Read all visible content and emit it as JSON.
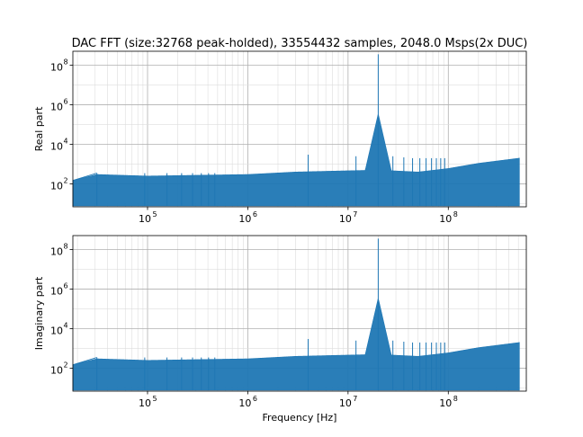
{
  "figure": {
    "title": "DAC FFT (size:32768 peak-holded), 33554432 samples, 2048.0 Msps(2x DUC)",
    "line_color": "#1f77b4"
  },
  "chart_data": [
    {
      "type": "line",
      "title": "DAC FFT (size:32768 peak-holded), 33554432 samples, 2048.0 Msps(2x DUC)",
      "ylabel": "Real part",
      "xlabel": "",
      "x_scale": "log",
      "y_scale": "log",
      "xlim": [
        18000,
        600000000
      ],
      "ylim": [
        7,
        500000000
      ],
      "grid": true,
      "x_ticks": [
        {
          "base": "10",
          "exp": "5",
          "value": 100000
        },
        {
          "base": "10",
          "exp": "6",
          "value": 1000000
        },
        {
          "base": "10",
          "exp": "7",
          "value": 10000000
        },
        {
          "base": "10",
          "exp": "8",
          "value": 100000000
        }
      ],
      "y_ticks": [
        {
          "base": "10",
          "exp": "2",
          "value": 100
        },
        {
          "base": "10",
          "exp": "4",
          "value": 10000
        },
        {
          "base": "10",
          "exp": "6",
          "value": 1000000
        },
        {
          "base": "10",
          "exp": "8",
          "value": 100000000
        }
      ],
      "series": [
        {
          "noise_floor_start_hz": 18000,
          "noise_floor_end_hz": 512000000,
          "noise_floor": [
            [
              18000,
              150
            ],
            [
              31250,
              300
            ],
            [
              100000,
              250
            ],
            [
              1000000,
              300
            ],
            [
              3000000,
              400
            ],
            [
              8000000,
              450
            ],
            [
              20000000,
              500
            ],
            [
              50000000,
              400
            ],
            [
              100000000,
              600
            ],
            [
              200000000,
              1100
            ],
            [
              512000000,
              2000
            ]
          ],
          "spurs": [
            {
              "x": 31250,
              "y": 350
            },
            {
              "x": 93750,
              "y": 350
            },
            {
              "x": 156250,
              "y": 350
            },
            {
              "x": 218750,
              "y": 350
            },
            {
              "x": 281250,
              "y": 350
            },
            {
              "x": 343750,
              "y": 350
            },
            {
              "x": 406250,
              "y": 350
            },
            {
              "x": 468750,
              "y": 350
            },
            {
              "x": 4000000,
              "y": 3000
            },
            {
              "x": 12000000,
              "y": 2500
            },
            {
              "x": 20000000,
              "y": 350000000
            },
            {
              "x": 28000000,
              "y": 2500
            },
            {
              "x": 36000000,
              "y": 2200
            },
            {
              "x": 44000000,
              "y": 2000
            },
            {
              "x": 52000000,
              "y": 2000
            },
            {
              "x": 60000000,
              "y": 2000
            },
            {
              "x": 68000000,
              "y": 2000
            },
            {
              "x": 76000000,
              "y": 2000
            },
            {
              "x": 84000000,
              "y": 2000
            },
            {
              "x": 92000000,
              "y": 2000
            }
          ]
        }
      ]
    },
    {
      "type": "line",
      "title": "",
      "ylabel": "Imaginary part",
      "xlabel": "Frequency [Hz]",
      "x_scale": "log",
      "y_scale": "log",
      "xlim": [
        18000,
        600000000
      ],
      "ylim": [
        7,
        500000000
      ],
      "grid": true,
      "x_ticks": [
        {
          "base": "10",
          "exp": "5",
          "value": 100000
        },
        {
          "base": "10",
          "exp": "6",
          "value": 1000000
        },
        {
          "base": "10",
          "exp": "7",
          "value": 10000000
        },
        {
          "base": "10",
          "exp": "8",
          "value": 100000000
        }
      ],
      "y_ticks": [
        {
          "base": "10",
          "exp": "2",
          "value": 100
        },
        {
          "base": "10",
          "exp": "4",
          "value": 10000
        },
        {
          "base": "10",
          "exp": "6",
          "value": 1000000
        },
        {
          "base": "10",
          "exp": "8",
          "value": 100000000
        }
      ],
      "series": [
        {
          "noise_floor_start_hz": 18000,
          "noise_floor_end_hz": 512000000,
          "noise_floor": [
            [
              18000,
              150
            ],
            [
              31250,
              300
            ],
            [
              100000,
              250
            ],
            [
              1000000,
              300
            ],
            [
              3000000,
              400
            ],
            [
              8000000,
              450
            ],
            [
              20000000,
              500
            ],
            [
              50000000,
              400
            ],
            [
              100000000,
              600
            ],
            [
              200000000,
              1100
            ],
            [
              512000000,
              2000
            ]
          ],
          "spurs": [
            {
              "x": 31250,
              "y": 350
            },
            {
              "x": 93750,
              "y": 350
            },
            {
              "x": 156250,
              "y": 350
            },
            {
              "x": 218750,
              "y": 350
            },
            {
              "x": 281250,
              "y": 350
            },
            {
              "x": 343750,
              "y": 350
            },
            {
              "x": 406250,
              "y": 350
            },
            {
              "x": 468750,
              "y": 350
            },
            {
              "x": 4000000,
              "y": 3000
            },
            {
              "x": 12000000,
              "y": 2500
            },
            {
              "x": 20000000,
              "y": 350000000
            },
            {
              "x": 28000000,
              "y": 2500
            },
            {
              "x": 36000000,
              "y": 2200
            },
            {
              "x": 44000000,
              "y": 2000
            },
            {
              "x": 52000000,
              "y": 2000
            },
            {
              "x": 60000000,
              "y": 2000
            },
            {
              "x": 68000000,
              "y": 2000
            },
            {
              "x": 76000000,
              "y": 2000
            },
            {
              "x": 84000000,
              "y": 2000
            },
            {
              "x": 92000000,
              "y": 2000
            }
          ]
        }
      ]
    }
  ]
}
